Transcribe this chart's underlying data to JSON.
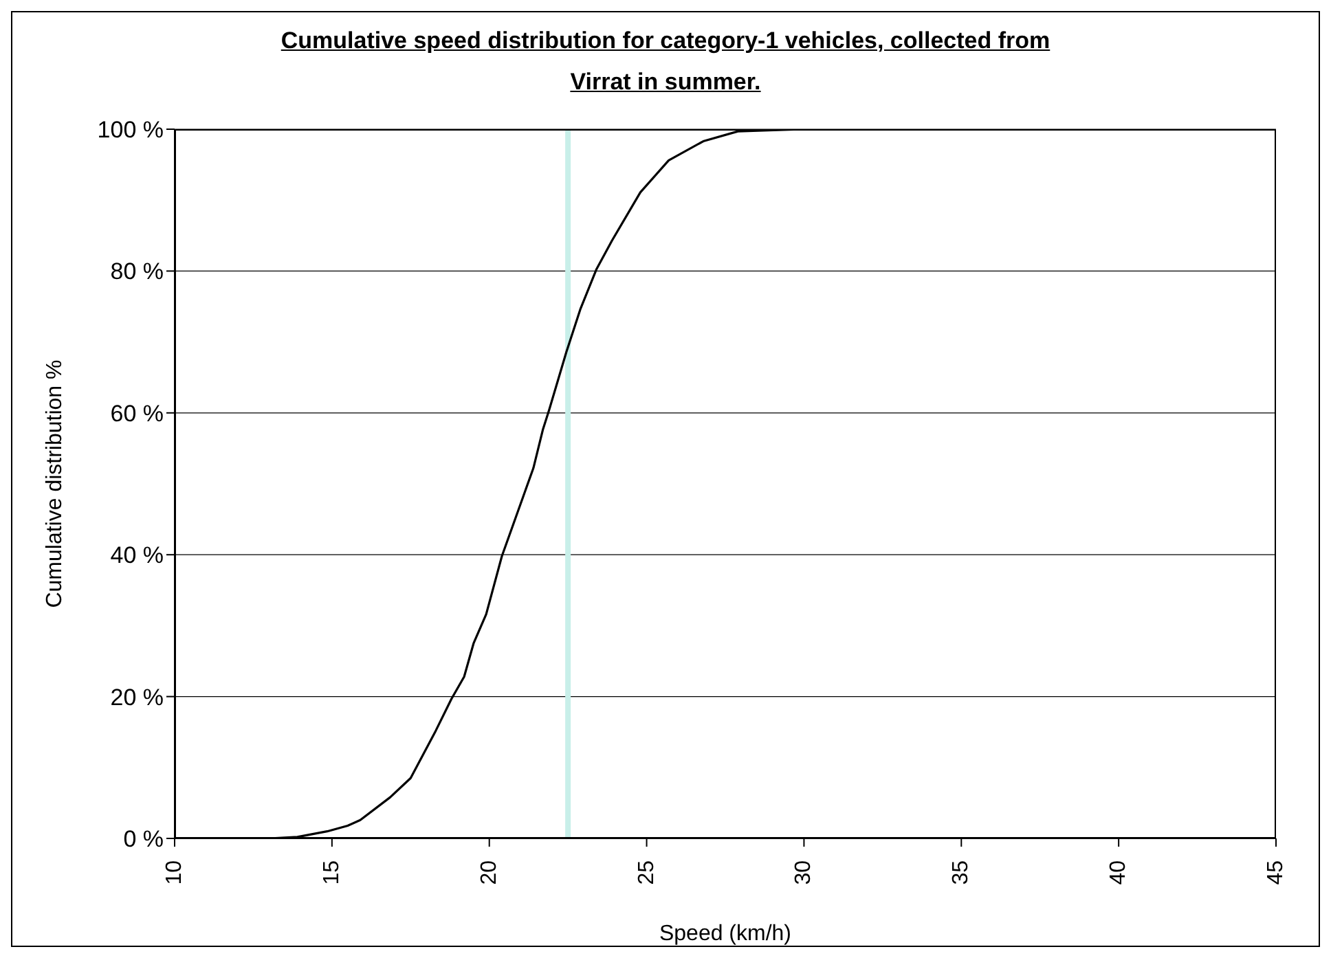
{
  "chart_data": {
    "type": "line",
    "title": "Cumulative speed distribution for category-1 vehicles, collected from Virrat in summer.",
    "xlabel": "Speed (km/h)",
    "ylabel": "Cumulative distribution %",
    "x": [
      10,
      13.0,
      13.9,
      14.85,
      15.5,
      15.9,
      16.85,
      17.5,
      18.3,
      18.8,
      19.2,
      19.5,
      19.9,
      20.4,
      20.9,
      21.4,
      21.7,
      21.9,
      22.45,
      22.9,
      23.4,
      23.9,
      24.8,
      25.7,
      26.8,
      27.9,
      30
    ],
    "series": [
      {
        "color": "#000000",
        "values": [
          0,
          0,
          0.2,
          1.0,
          1.8,
          2.6,
          5.8,
          8.5,
          15.2,
          19.7,
          22.8,
          27.5,
          31.6,
          39.8,
          46,
          52.2,
          57.6,
          60.4,
          68.6,
          74.7,
          80.2,
          84.3,
          91.1,
          95.6,
          98.3,
          99.7,
          100
        ]
      }
    ],
    "xlim": [
      10,
      45
    ],
    "xticks": [
      10,
      15,
      20,
      25,
      30,
      35,
      40,
      45
    ],
    "ylim": [
      0,
      100
    ],
    "yticks": [
      {
        "value": 0,
        "label": "0 %"
      },
      {
        "value": 20,
        "label": "20 %"
      },
      {
        "value": 40,
        "label": "40 %"
      },
      {
        "value": 60,
        "label": "60 %"
      },
      {
        "value": 80,
        "label": "80 %"
      },
      {
        "value": 100,
        "label": "100 %"
      }
    ],
    "ref_lines": [
      {
        "axis": "x",
        "value": 22.5,
        "color": "#c8efe9"
      }
    ],
    "grid": "y"
  }
}
